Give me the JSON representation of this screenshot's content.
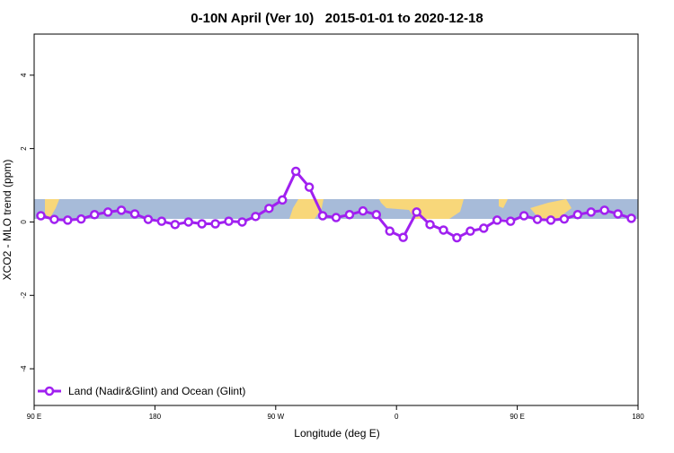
{
  "chart_data": {
    "type": "line",
    "title": "0-10N April (Ver 10)   2015-01-01 to 2020-12-18",
    "x_label": "Longitude (deg E)",
    "y_label": "XCO2 - MLO trend (ppm)",
    "x": [
      95,
      105,
      115,
      125,
      135,
      145,
      155,
      165,
      175,
      185,
      195,
      205,
      215,
      225,
      235,
      245,
      255,
      265,
      275,
      285,
      295,
      305,
      315,
      325,
      335,
      345,
      355,
      365,
      375,
      385,
      395,
      405,
      415,
      425,
      435,
      445,
      455,
      465,
      475,
      485,
      495,
      505,
      515,
      525,
      535
    ],
    "series": [
      {
        "name": "Land (Nadir&Glint) and Ocean (Glint)",
        "color": "#a020f0",
        "values": [
          0.17,
          0.07,
          0.05,
          0.08,
          0.2,
          0.27,
          0.32,
          0.22,
          0.07,
          0.02,
          -0.07,
          0,
          -0.05,
          -0.05,
          0.02,
          0,
          0.15,
          0.37,
          0.6,
          1.38,
          0.95,
          0.17,
          0.12,
          0.2,
          0.3,
          0.2,
          -0.25,
          -0.42,
          0.27,
          -0.07,
          -0.22,
          -0.43,
          -0.25,
          -0.17,
          0.05,
          0.02,
          0.17,
          0.07,
          0.05,
          0.08,
          0.2,
          0.27,
          0.32,
          0.22,
          0.1
        ]
      }
    ],
    "xlim": [
      90,
      540
    ],
    "xticks": [
      {
        "value": 90,
        "label": "90 E"
      },
      180,
      {
        "value": 270,
        "label": "90 W"
      },
      {
        "value": 360,
        "label": "0"
      },
      {
        "value": 450,
        "label": "90 E"
      },
      {
        "value": 540,
        "label": "180"
      }
    ],
    "ylim": [
      -5,
      5.12
    ],
    "yticks": [
      -4,
      -2,
      0,
      2,
      4
    ],
    "legend": "bottom-left"
  }
}
